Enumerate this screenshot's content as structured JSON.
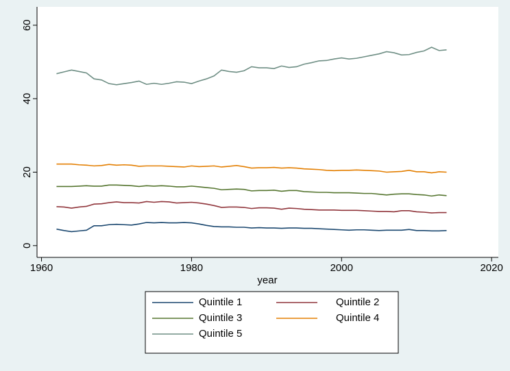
{
  "chart_data": {
    "type": "line",
    "x_label": "year",
    "x": [
      1962,
      1963,
      1964,
      1965,
      1966,
      1967,
      1968,
      1969,
      1970,
      1971,
      1972,
      1973,
      1974,
      1975,
      1976,
      1977,
      1978,
      1979,
      1980,
      1981,
      1982,
      1983,
      1984,
      1985,
      1986,
      1987,
      1988,
      1989,
      1990,
      1991,
      1992,
      1993,
      1994,
      1995,
      1996,
      1997,
      1998,
      1999,
      2000,
      2001,
      2002,
      2003,
      2004,
      2005,
      2006,
      2007,
      2008,
      2009,
      2010,
      2011,
      2012,
      2013,
      2014
    ],
    "series": [
      {
        "name": "Quintile 1",
        "color": "#1a476f",
        "values": [
          4.5,
          4.1,
          3.8,
          4.0,
          4.2,
          5.4,
          5.4,
          5.7,
          5.8,
          5.7,
          5.6,
          5.9,
          6.3,
          6.2,
          6.3,
          6.2,
          6.2,
          6.3,
          6.2,
          5.9,
          5.5,
          5.2,
          5.1,
          5.1,
          5.0,
          5.0,
          4.8,
          4.9,
          4.8,
          4.8,
          4.7,
          4.8,
          4.8,
          4.7,
          4.7,
          4.6,
          4.5,
          4.4,
          4.3,
          4.2,
          4.3,
          4.3,
          4.2,
          4.1,
          4.2,
          4.2,
          4.2,
          4.4,
          4.1,
          4.1,
          4.0,
          4.0,
          4.1
        ]
      },
      {
        "name": "Quintile 2",
        "color": "#90353b",
        "values": [
          10.6,
          10.5,
          10.2,
          10.5,
          10.7,
          11.3,
          11.4,
          11.7,
          11.9,
          11.7,
          11.7,
          11.6,
          12.0,
          11.8,
          12.0,
          11.9,
          11.6,
          11.7,
          11.8,
          11.6,
          11.3,
          10.9,
          10.4,
          10.5,
          10.5,
          10.4,
          10.1,
          10.3,
          10.3,
          10.2,
          9.9,
          10.2,
          10.1,
          9.9,
          9.8,
          9.7,
          9.7,
          9.7,
          9.6,
          9.6,
          9.6,
          9.5,
          9.4,
          9.3,
          9.3,
          9.2,
          9.5,
          9.5,
          9.2,
          9.1,
          8.9,
          9.0,
          9.0
        ]
      },
      {
        "name": "Quintile 3",
        "color": "#55752f",
        "values": [
          16.1,
          16.1,
          16.1,
          16.2,
          16.3,
          16.2,
          16.2,
          16.5,
          16.5,
          16.4,
          16.3,
          16.1,
          16.3,
          16.2,
          16.3,
          16.2,
          16.0,
          16.0,
          16.2,
          16.0,
          15.8,
          15.6,
          15.2,
          15.3,
          15.4,
          15.3,
          14.9,
          15.0,
          15.0,
          15.1,
          14.8,
          15.0,
          15.0,
          14.7,
          14.6,
          14.5,
          14.5,
          14.4,
          14.4,
          14.4,
          14.3,
          14.2,
          14.2,
          14.0,
          13.8,
          14.0,
          14.1,
          14.1,
          13.9,
          13.8,
          13.5,
          13.8,
          13.6
        ]
      },
      {
        "name": "Quintile 4",
        "color": "#e37e00",
        "values": [
          22.2,
          22.2,
          22.2,
          22.0,
          21.9,
          21.7,
          21.8,
          22.1,
          21.9,
          22.0,
          21.9,
          21.6,
          21.7,
          21.7,
          21.7,
          21.6,
          21.5,
          21.4,
          21.7,
          21.5,
          21.6,
          21.7,
          21.4,
          21.6,
          21.8,
          21.5,
          21.1,
          21.2,
          21.2,
          21.3,
          21.1,
          21.2,
          21.1,
          20.9,
          20.8,
          20.7,
          20.5,
          20.4,
          20.5,
          20.5,
          20.6,
          20.5,
          20.4,
          20.3,
          20.0,
          20.1,
          20.2,
          20.5,
          20.1,
          20.1,
          19.8,
          20.1,
          20.0
        ]
      },
      {
        "name": "Quintile 5",
        "color": "#6e8e84",
        "values": [
          46.8,
          47.3,
          47.8,
          47.4,
          47.0,
          45.4,
          45.1,
          44.1,
          43.8,
          44.1,
          44.4,
          44.8,
          43.9,
          44.2,
          43.9,
          44.2,
          44.6,
          44.5,
          44.1,
          44.8,
          45.4,
          46.2,
          47.8,
          47.4,
          47.2,
          47.6,
          48.7,
          48.4,
          48.4,
          48.2,
          48.9,
          48.5,
          48.7,
          49.4,
          49.8,
          50.3,
          50.4,
          50.8,
          51.1,
          50.8,
          51.0,
          51.4,
          51.8,
          52.2,
          52.8,
          52.5,
          51.9,
          52.0,
          52.6,
          53.0,
          54.0,
          53.1,
          53.3
        ]
      }
    ],
    "xlim": [
      1959.4,
      2020.9
    ],
    "xticks": [
      1960,
      1980,
      2000,
      2020
    ],
    "ylim": [
      -3.2,
      65
    ],
    "yticks": [
      0,
      20,
      40,
      60
    ],
    "grid": false,
    "legend": "bottom"
  }
}
